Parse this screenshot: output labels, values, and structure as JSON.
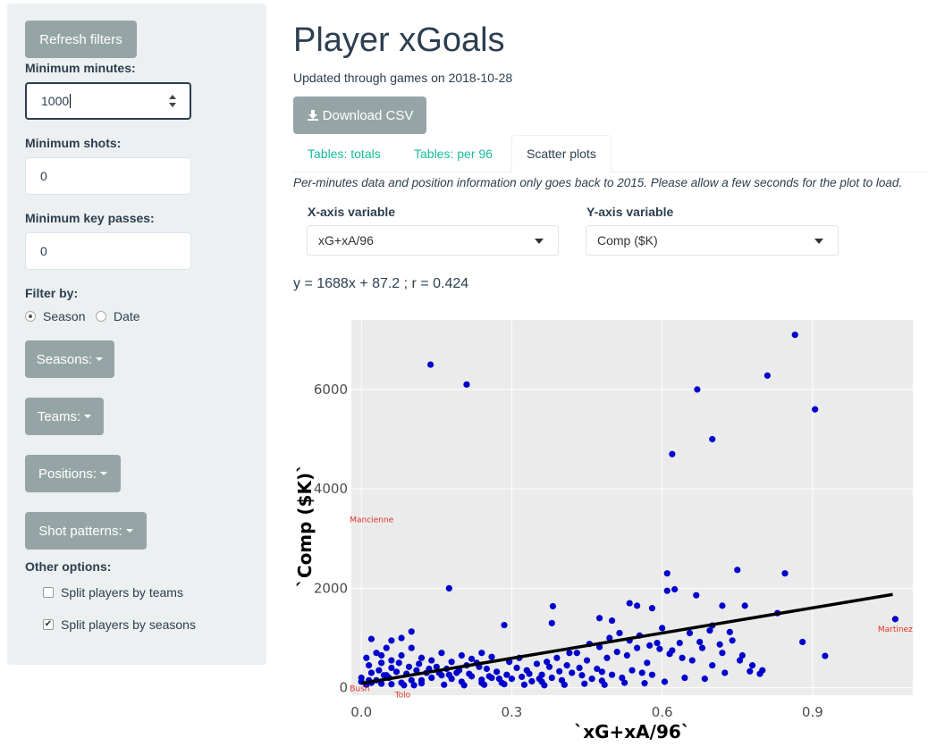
{
  "sidebar": {
    "refresh_label": "Refresh filters",
    "min_minutes_label": "Minimum minutes:",
    "min_minutes_value": "1000",
    "min_shots_label": "Minimum shots:",
    "min_shots_value": "0",
    "min_keypasses_label": "Minimum key passes:",
    "min_keypasses_value": "0",
    "filter_by_label": "Filter by:",
    "radio_season": "Season",
    "radio_date": "Date",
    "seasons_label": "Seasons:",
    "teams_label": "Teams:",
    "positions_label": "Positions:",
    "shot_patterns_label": "Shot patterns:",
    "other_options_label": "Other options:",
    "split_teams_label": "Split players by teams",
    "split_teams_checked": false,
    "split_seasons_label": "Split players by seasons",
    "split_seasons_checked": true
  },
  "main": {
    "title": "Player xGoals",
    "updated": "Updated through games on 2018-10-28",
    "download_label": "Download CSV",
    "tabs": [
      {
        "label": "Tables: totals",
        "active": false
      },
      {
        "label": "Tables: per 96",
        "active": false
      },
      {
        "label": "Scatter plots",
        "active": true
      }
    ],
    "note": "Per-minutes data and position information only goes back to 2015. Please allow a few seconds for the plot to load.",
    "x_axis_label": "X-axis variable",
    "x_axis_value": "xG+xA/96",
    "y_axis_label": "Y-axis variable",
    "y_axis_value": "Comp ($K)",
    "equation": "y = 1688x + 87.2 ; r = 0.424"
  },
  "colors": {
    "point": "#0000cc",
    "label": "#e03020",
    "panel": "#ebebeb",
    "accent_tab": "#18bc9c",
    "button": "#95a5a6"
  },
  "chart_data": {
    "type": "scatter",
    "xlabel": "`xG+xA/96`",
    "ylabel": "`Comp ($K)`",
    "xlim": [
      -0.02,
      1.1
    ],
    "ylim": [
      -150,
      7400
    ],
    "xticks": [
      "0.0",
      "0.3",
      "0.6",
      "0.9"
    ],
    "xtick_values": [
      0,
      0.3,
      0.6,
      0.9
    ],
    "yticks": [
      "0",
      "2000",
      "4000",
      "6000"
    ],
    "ytick_values": [
      0,
      2000,
      4000,
      6000
    ],
    "grid": true,
    "fit_line": {
      "slope": 1688,
      "intercept": 87.2,
      "x_range": [
        0,
        1.06
      ]
    },
    "points": [
      [
        0.138,
        6500
      ],
      [
        0.21,
        6100
      ],
      [
        0.865,
        7100
      ],
      [
        0.81,
        6280
      ],
      [
        0.67,
        6000
      ],
      [
        0.905,
        5600
      ],
      [
        0.7,
        5000
      ],
      [
        0.62,
        4700
      ],
      [
        0.175,
        2000
      ],
      [
        0.75,
        2370
      ],
      [
        0.61,
        2300
      ],
      [
        0.845,
        2300
      ],
      [
        0.61,
        1950
      ],
      [
        0.625,
        1980
      ],
      [
        0.668,
        1860
      ],
      [
        0.535,
        1700
      ],
      [
        0.55,
        1650
      ],
      [
        0.72,
        1650
      ],
      [
        0.765,
        1650
      ],
      [
        0.58,
        1600
      ],
      [
        0.382,
        1640
      ],
      [
        0.83,
        1500
      ],
      [
        0.475,
        1400
      ],
      [
        0.5,
        1350
      ],
      [
        0.38,
        1300
      ],
      [
        0.285,
        1260
      ],
      [
        0.7,
        1250
      ],
      [
        0.6,
        1200
      ],
      [
        1.065,
        1380
      ],
      [
        0.88,
        920
      ],
      [
        0.925,
        640
      ],
      [
        0.1,
        1130
      ],
      [
        0.08,
        1000
      ],
      [
        0.06,
        950
      ],
      [
        0.02,
        980
      ],
      [
        0.05,
        800
      ],
      [
        0.03,
        700
      ],
      [
        0.01,
        600
      ],
      [
        0.04,
        500
      ],
      [
        0.06,
        400
      ],
      [
        0.02,
        300
      ],
      [
        0.0,
        200
      ],
      [
        0.0,
        120
      ],
      [
        0.01,
        60
      ],
      [
        0.03,
        150
      ],
      [
        0.05,
        250
      ],
      [
        0.07,
        320
      ],
      [
        0.09,
        280
      ],
      [
        0.11,
        350
      ],
      [
        0.13,
        300
      ],
      [
        0.15,
        420
      ],
      [
        0.17,
        380
      ],
      [
        0.19,
        300
      ],
      [
        0.21,
        450
      ],
      [
        0.23,
        500
      ],
      [
        0.25,
        380
      ],
      [
        0.27,
        320
      ],
      [
        0.29,
        260
      ],
      [
        0.31,
        400
      ],
      [
        0.33,
        350
      ],
      [
        0.35,
        480
      ],
      [
        0.37,
        520
      ],
      [
        0.39,
        600
      ],
      [
        0.41,
        450
      ],
      [
        0.43,
        700
      ],
      [
        0.45,
        550
      ],
      [
        0.47,
        380
      ],
      [
        0.49,
        600
      ],
      [
        0.51,
        720
      ],
      [
        0.53,
        650
      ],
      [
        0.55,
        800
      ],
      [
        0.57,
        500
      ],
      [
        0.59,
        900
      ],
      [
        0.62,
        750
      ],
      [
        0.64,
        600
      ],
      [
        0.66,
        550
      ],
      [
        0.68,
        800
      ],
      [
        0.7,
        450
      ],
      [
        0.72,
        700
      ],
      [
        0.74,
        950
      ],
      [
        0.76,
        650
      ],
      [
        0.78,
        450
      ],
      [
        0.8,
        350
      ],
      [
        0.02,
        100
      ],
      [
        0.04,
        80
      ],
      [
        0.06,
        70
      ],
      [
        0.08,
        100
      ],
      [
        0.1,
        150
      ],
      [
        0.12,
        90
      ],
      [
        0.14,
        200
      ],
      [
        0.16,
        250
      ],
      [
        0.18,
        180
      ],
      [
        0.2,
        120
      ],
      [
        0.22,
        230
      ],
      [
        0.24,
        160
      ],
      [
        0.26,
        200
      ],
      [
        0.28,
        100
      ],
      [
        0.3,
        180
      ],
      [
        0.32,
        220
      ],
      [
        0.34,
        130
      ],
      [
        0.36,
        260
      ],
      [
        0.38,
        200
      ],
      [
        0.4,
        150
      ],
      [
        0.42,
        300
      ],
      [
        0.44,
        250
      ],
      [
        0.46,
        180
      ],
      [
        0.48,
        320
      ],
      [
        0.5,
        260
      ],
      [
        0.52,
        200
      ],
      [
        0.54,
        350
      ],
      [
        0.56,
        300
      ],
      [
        0.58,
        260
      ],
      [
        0.12,
        600
      ],
      [
        0.14,
        550
      ],
      [
        0.16,
        700
      ],
      [
        0.18,
        520
      ],
      [
        0.2,
        650
      ],
      [
        0.22,
        580
      ],
      [
        0.24,
        700
      ],
      [
        0.26,
        620
      ],
      [
        0.1,
        800
      ],
      [
        0.08,
        650
      ],
      [
        0.06,
        550
      ],
      [
        0.04,
        650
      ],
      [
        0.015,
        450
      ],
      [
        0.035,
        350
      ],
      [
        0.055,
        200
      ],
      [
        0.075,
        500
      ],
      [
        0.095,
        420
      ],
      [
        0.115,
        480
      ],
      [
        0.135,
        380
      ],
      [
        0.155,
        300
      ],
      [
        0.175,
        260
      ],
      [
        0.195,
        350
      ],
      [
        0.215,
        280
      ],
      [
        0.235,
        420
      ],
      [
        0.255,
        230
      ],
      [
        0.275,
        180
      ],
      [
        0.295,
        520
      ],
      [
        0.315,
        600
      ],
      [
        0.335,
        280
      ],
      [
        0.355,
        180
      ],
      [
        0.375,
        420
      ],
      [
        0.395,
        330
      ],
      [
        0.415,
        700
      ],
      [
        0.435,
        400
      ],
      [
        0.455,
        880
      ],
      [
        0.475,
        820
      ],
      [
        0.495,
        1000
      ],
      [
        0.515,
        1100
      ],
      [
        0.535,
        950
      ],
      [
        0.555,
        1050
      ],
      [
        0.575,
        850
      ],
      [
        0.595,
        780
      ],
      [
        0.615,
        680
      ],
      [
        0.635,
        900
      ],
      [
        0.655,
        1100
      ],
      [
        0.675,
        920
      ],
      [
        0.695,
        1150
      ],
      [
        0.715,
        870
      ],
      [
        0.735,
        1120
      ],
      [
        0.755,
        550
      ],
      [
        0.775,
        330
      ],
      [
        0.795,
        280
      ],
      [
        0.015,
        150
      ],
      [
        0.045,
        250
      ],
      [
        0.085,
        50
      ],
      [
        0.105,
        50
      ],
      [
        0.165,
        60
      ],
      [
        0.205,
        50
      ],
      [
        0.245,
        60
      ],
      [
        0.285,
        70
      ],
      [
        0.325,
        60
      ],
      [
        0.365,
        50
      ],
      [
        0.405,
        60
      ],
      [
        0.445,
        80
      ],
      [
        0.485,
        60
      ],
      [
        0.525,
        100
      ],
      [
        0.565,
        90
      ],
      [
        0.605,
        120
      ],
      [
        0.645,
        200
      ],
      [
        0.685,
        180
      ],
      [
        0.725,
        300
      ],
      [
        0.12,
        150
      ],
      [
        0.24,
        100
      ],
      [
        0.36,
        120
      ],
      [
        0.48,
        140
      ]
    ],
    "annotations": [
      {
        "text": "Mancienne",
        "x": 0.0,
        "y": 3400
      },
      {
        "text": "Bush",
        "x": 0.0,
        "y": 0
      },
      {
        "text": "Tolo",
        "x": 0.09,
        "y": -120
      },
      {
        "text": "Martinez",
        "x": 1.065,
        "y": 1200
      }
    ]
  }
}
